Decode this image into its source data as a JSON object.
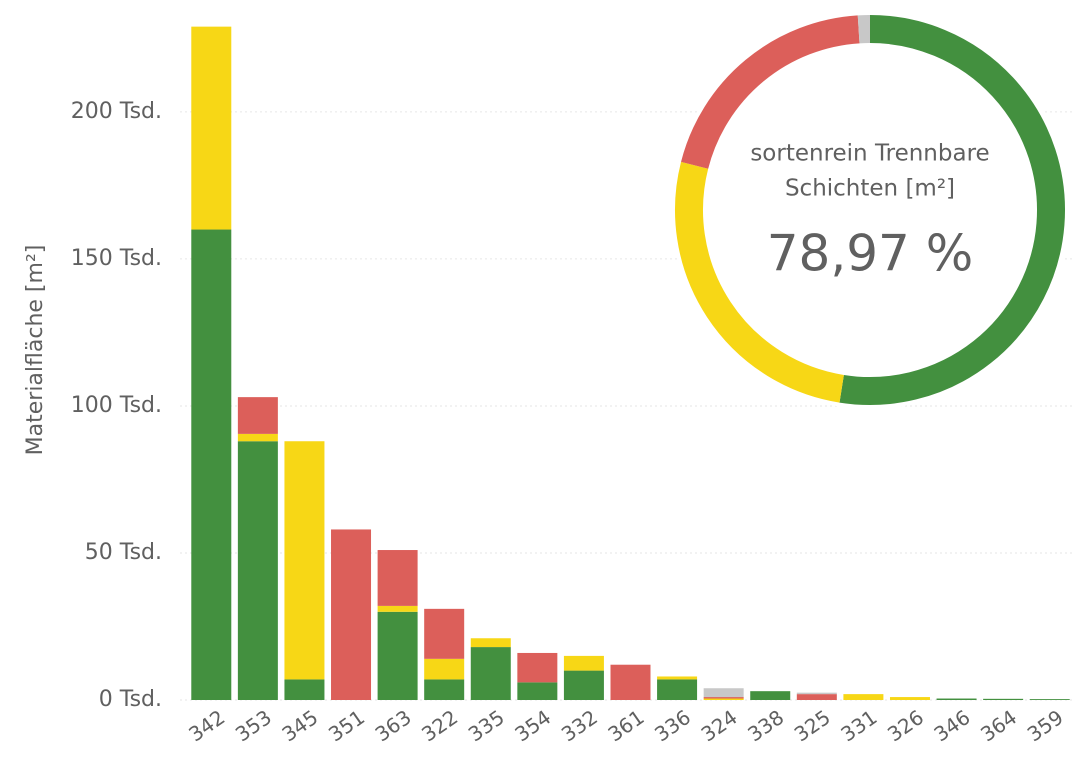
{
  "chart_data": [
    {
      "type": "bar",
      "stacked": true,
      "y_label": "Materialfläche [m²]",
      "categories": [
        "342",
        "353",
        "345",
        "351",
        "363",
        "322",
        "335",
        "354",
        "332",
        "361",
        "336",
        "324",
        "338",
        "325",
        "331",
        "326",
        "346",
        "364",
        "359"
      ],
      "series": [
        {
          "color": "#43903f",
          "values": [
            160000,
            88000,
            7000,
            0,
            30000,
            7000,
            18000,
            6000,
            10000,
            0,
            7000,
            0,
            3000,
            0,
            0,
            0,
            500,
            400,
            300
          ]
        },
        {
          "color": "#f7d716",
          "values": [
            69000,
            2500,
            81000,
            0,
            2000,
            7000,
            3000,
            0,
            5000,
            0,
            1000,
            500,
            0,
            0,
            2000,
            1000,
            0,
            0,
            0
          ]
        },
        {
          "color": "#dc5f5a",
          "values": [
            0,
            12500,
            0,
            58000,
            19000,
            17000,
            0,
            10000,
            0,
            12000,
            0,
            500,
            0,
            2000,
            0,
            0,
            0,
            0,
            0
          ]
        },
        {
          "color": "#c8c8c8",
          "values": [
            0,
            0,
            0,
            0,
            0,
            0,
            0,
            0,
            0,
            0,
            0,
            3000,
            0,
            500,
            0,
            0,
            0,
            0,
            0
          ]
        }
      ],
      "ylim": [
        0,
        235000
      ],
      "yticks": [
        {
          "value": 0,
          "label": "0 Tsd."
        },
        {
          "value": 50000,
          "label": "50 Tsd."
        },
        {
          "value": 100000,
          "label": "100 Tsd."
        },
        {
          "value": 150000,
          "label": "150 Tsd."
        },
        {
          "value": 200000,
          "label": "200 Tsd."
        }
      ],
      "grid": true
    },
    {
      "type": "donut",
      "title_lines": [
        "sortenrein Trennbare",
        "Schichten [m²]"
      ],
      "center_label": "78,97 %",
      "values": [
        52.5,
        26.47,
        20.03,
        1
      ],
      "colors": [
        "#43903f",
        "#f7d716",
        "#dc5f5a",
        "#c8c8c8"
      ]
    }
  ]
}
